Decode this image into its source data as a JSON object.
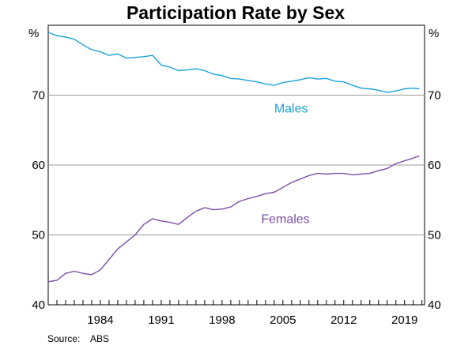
{
  "chart_data": {
    "type": "line",
    "title": "Participation Rate by Sex",
    "ylabel_left": "%",
    "ylabel_right": "%",
    "ylim": [
      40,
      80
    ],
    "yticks": [
      40,
      50,
      60,
      70
    ],
    "xlim": [
      1978.0,
      2021.3
    ],
    "xticks": [
      1984,
      1991,
      1998,
      2005,
      2012,
      2019
    ],
    "grid": "horizontal",
    "series": [
      {
        "name": "Males",
        "color": "#1BA1D7",
        "x": [
          1978.0,
          1979.0,
          1980.0,
          1981.0,
          1982.0,
          1983.0,
          1984.0,
          1985.0,
          1986.0,
          1987.0,
          1988.0,
          1989.0,
          1990.0,
          1991.0,
          1992.0,
          1993.0,
          1994.0,
          1995.0,
          1996.0,
          1997.0,
          1998.0,
          1999.0,
          2000.0,
          2001.0,
          2002.0,
          2003.0,
          2004.0,
          2005.0,
          2006.0,
          2007.0,
          2008.0,
          2009.0,
          2010.0,
          2011.0,
          2012.0,
          2013.0,
          2014.0,
          2015.0,
          2016.0,
          2017.0,
          2018.0,
          2019.0,
          2020.0,
          2020.7
        ],
        "values": [
          79.0,
          78.5,
          78.3,
          78.0,
          77.2,
          76.5,
          76.2,
          75.7,
          75.9,
          75.3,
          75.4,
          75.5,
          75.7,
          74.3,
          74.0,
          73.5,
          73.6,
          73.8,
          73.5,
          73.0,
          72.8,
          72.4,
          72.3,
          72.1,
          71.9,
          71.6,
          71.4,
          71.8,
          72.0,
          72.2,
          72.5,
          72.3,
          72.4,
          72.0,
          71.9,
          71.4,
          71.0,
          70.9,
          70.7,
          70.4,
          70.6,
          70.9,
          71.0,
          70.9
        ]
      },
      {
        "name": "Females",
        "color": "#7B4FA4",
        "x": [
          1978.0,
          1979.0,
          1980.0,
          1981.0,
          1982.0,
          1983.0,
          1984.0,
          1985.0,
          1986.0,
          1987.0,
          1988.0,
          1989.0,
          1990.0,
          1991.0,
          1992.0,
          1993.0,
          1994.0,
          1995.0,
          1996.0,
          1997.0,
          1998.0,
          1999.0,
          2000.0,
          2001.0,
          2002.0,
          2003.0,
          2004.0,
          2005.0,
          2006.0,
          2007.0,
          2008.0,
          2009.0,
          2010.0,
          2011.0,
          2012.0,
          2013.0,
          2014.0,
          2015.0,
          2016.0,
          2017.0,
          2018.0,
          2019.0,
          2020.0,
          2020.7
        ],
        "values": [
          43.3,
          43.5,
          44.5,
          44.8,
          44.5,
          44.3,
          45.0,
          46.5,
          48.0,
          49.0,
          50.0,
          51.5,
          52.3,
          52.0,
          51.8,
          51.5,
          52.5,
          53.4,
          53.9,
          53.6,
          53.7,
          54.0,
          54.8,
          55.2,
          55.5,
          55.9,
          56.1,
          56.8,
          57.5,
          58.0,
          58.5,
          58.8,
          58.7,
          58.8,
          58.8,
          58.6,
          58.7,
          58.8,
          59.2,
          59.5,
          60.2,
          60.6,
          61.0,
          61.3
        ]
      }
    ],
    "annotations": [
      {
        "text": "Males",
        "series": "Males"
      },
      {
        "text": "Females",
        "series": "Females"
      }
    ]
  },
  "footer": {
    "source_label": "Source:",
    "source_value": "ABS"
  }
}
